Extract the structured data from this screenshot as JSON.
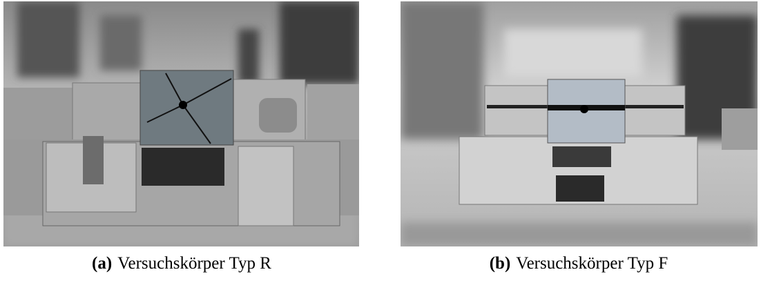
{
  "figures": [
    {
      "label": "(a)",
      "caption": "Versuchskörper Typ R"
    },
    {
      "label": "(b)",
      "caption": "Versuchskörper Typ F"
    }
  ]
}
